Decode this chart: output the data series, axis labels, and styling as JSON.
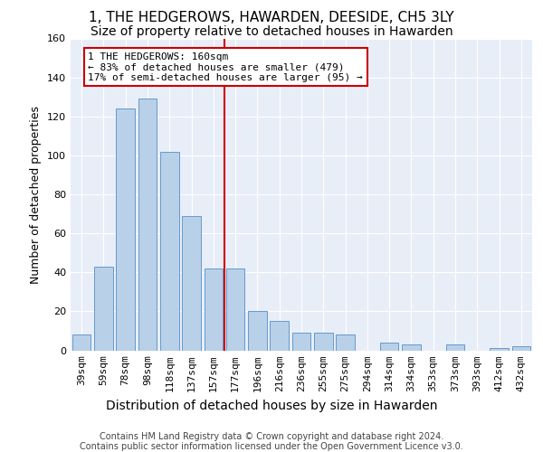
{
  "title": "1, THE HEDGEROWS, HAWARDEN, DEESIDE, CH5 3LY",
  "subtitle": "Size of property relative to detached houses in Hawarden",
  "xlabel": "Distribution of detached houses by size in Hawarden",
  "ylabel": "Number of detached properties",
  "categories": [
    "39sqm",
    "59sqm",
    "78sqm",
    "98sqm",
    "118sqm",
    "137sqm",
    "157sqm",
    "177sqm",
    "196sqm",
    "216sqm",
    "236sqm",
    "255sqm",
    "275sqm",
    "294sqm",
    "314sqm",
    "334sqm",
    "353sqm",
    "373sqm",
    "393sqm",
    "412sqm",
    "432sqm"
  ],
  "values": [
    8,
    43,
    124,
    129,
    102,
    69,
    42,
    42,
    20,
    15,
    9,
    9,
    8,
    0,
    4,
    3,
    0,
    3,
    0,
    1,
    2
  ],
  "bar_color": "#b8d0e8",
  "bar_edge_color": "#6699cc",
  "annotation_text": "1 THE HEDGEROWS: 160sqm\n← 83% of detached houses are smaller (479)\n17% of semi-detached houses are larger (95) →",
  "annotation_box_color": "#ffffff",
  "annotation_box_edge_color": "#cc0000",
  "highlight_line_color": "#cc0000",
  "ylim": [
    0,
    160
  ],
  "yticks": [
    0,
    20,
    40,
    60,
    80,
    100,
    120,
    140,
    160
  ],
  "background_color": "#e8eef8",
  "grid_color": "#ffffff",
  "fig_background": "#ffffff",
  "title_fontsize": 11,
  "subtitle_fontsize": 10,
  "xlabel_fontsize": 10,
  "ylabel_fontsize": 9,
  "tick_fontsize": 8,
  "annotation_fontsize": 8,
  "footer_fontsize": 7,
  "footer_line1": "Contains HM Land Registry data © Crown copyright and database right 2024.",
  "footer_line2": "Contains public sector information licensed under the Open Government Licence v3.0."
}
